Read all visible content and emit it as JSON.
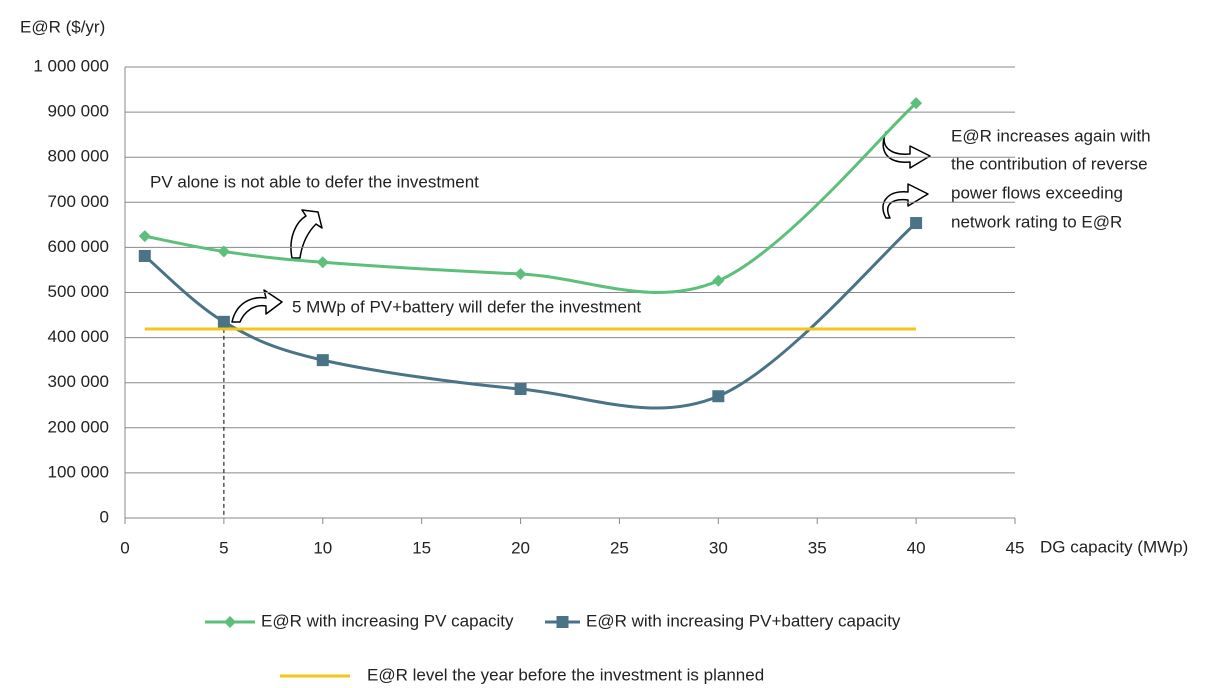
{
  "chart_data": {
    "type": "line",
    "y_label": "E@R ($/yr)",
    "x_label": "DG capacity (MWp)",
    "xlim": [
      0,
      45
    ],
    "xticks": [
      0,
      5,
      10,
      15,
      20,
      25,
      30,
      35,
      40,
      45
    ],
    "ylim": [
      0,
      1000000
    ],
    "yticks": [
      0,
      {
        "value": 100000,
        "label": "100 000"
      },
      {
        "value": 200000,
        "label": "200 000"
      },
      {
        "value": 300000,
        "label": "300 000"
      },
      {
        "value": 400000,
        "label": "400 000"
      },
      {
        "value": 500000,
        "label": "500 000"
      },
      {
        "value": 600000,
        "label": "600 000"
      },
      {
        "value": 700000,
        "label": "700 000"
      },
      {
        "value": 800000,
        "label": "800 000"
      },
      {
        "value": 900000,
        "label": "900 000"
      },
      {
        "value": 1000000,
        "label": "1 000 000"
      }
    ],
    "grid": true,
    "series": [
      {
        "name": "E@R with increasing PV capacity",
        "color": "#5cbf7a",
        "marker": "diamond",
        "smooth": true,
        "x": [
          1,
          5,
          10,
          20,
          30,
          40
        ],
        "values": [
          625000,
          591000,
          567000,
          541000,
          526000,
          920000
        ]
      },
      {
        "name": "E@R with increasing PV+battery capacity",
        "color": "#4a7387",
        "marker": "square",
        "smooth": true,
        "x": [
          1,
          5,
          10,
          20,
          30,
          40
        ],
        "values": [
          581000,
          435000,
          350000,
          286000,
          270000,
          654000
        ]
      },
      {
        "name": "E@R level the year before the investment is planned",
        "color": "#f5c518",
        "marker": "none",
        "smooth": false,
        "x": [
          1,
          40
        ],
        "values": [
          419000,
          419000
        ]
      }
    ],
    "annotations": [
      {
        "text": "PV alone is not able to defer the investment"
      },
      {
        "text": "5 MWp of PV+battery will defer the investment"
      },
      {
        "lines": [
          "E@R increases again with",
          "the contribution of reverse",
          "power flows exceeding",
          "network rating to E@R"
        ]
      }
    ]
  }
}
